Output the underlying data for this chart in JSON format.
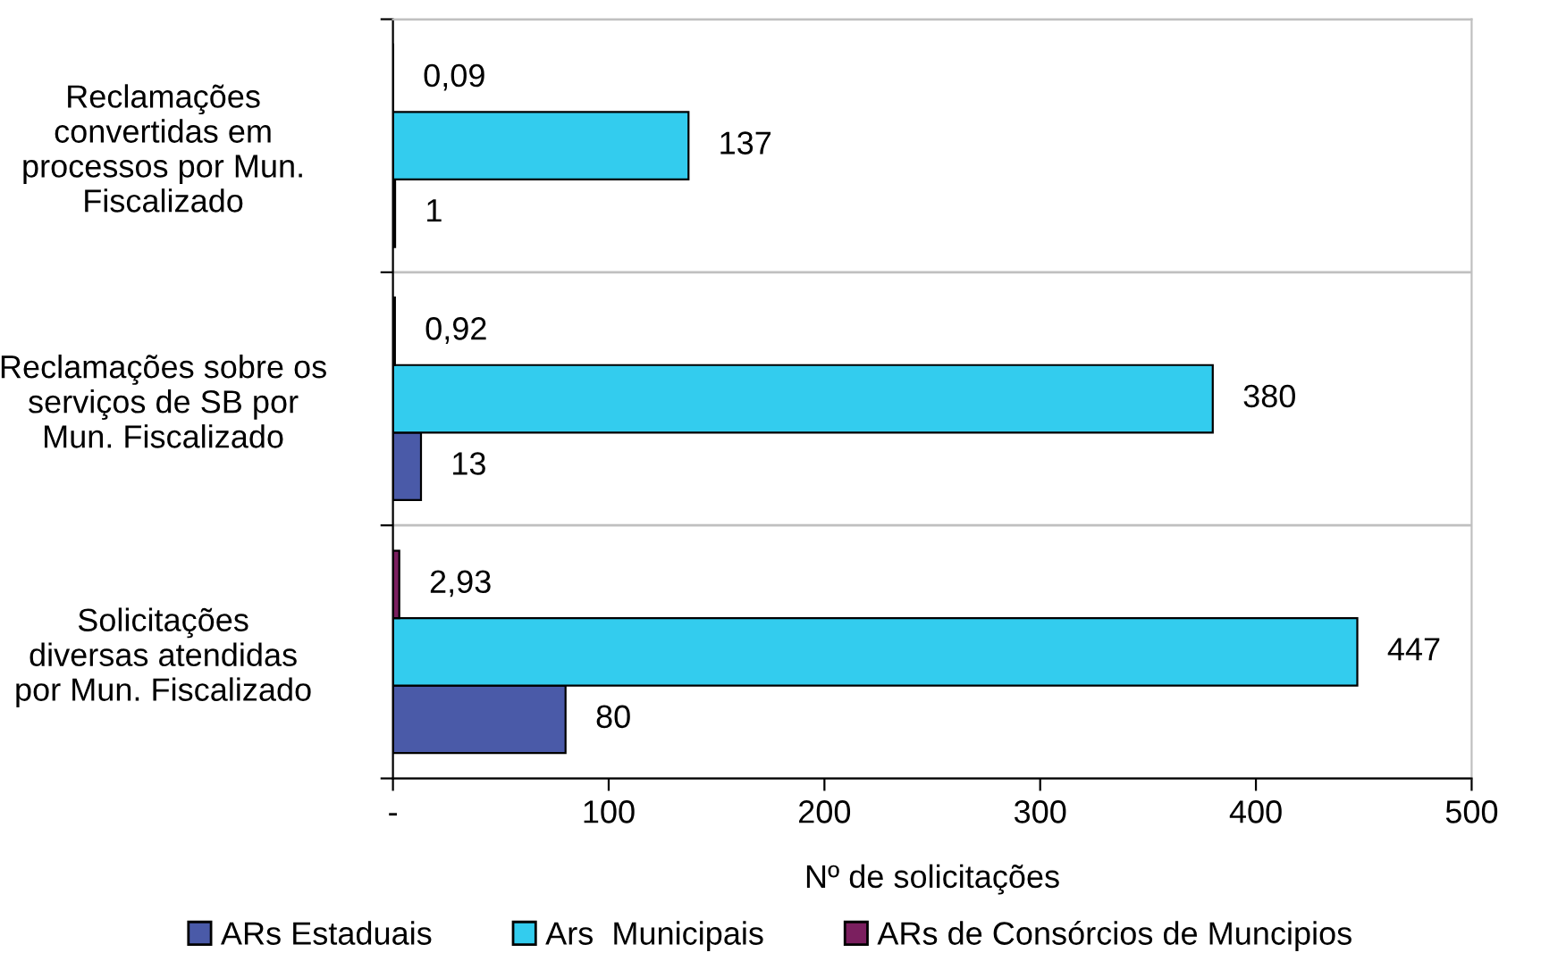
{
  "chart_data": {
    "type": "bar",
    "orientation": "horizontal",
    "xlabel": "Nº de solicitações",
    "categories": [
      "Reclamações convertidas em processos por Mun. Fiscalizado",
      "Reclamações sobre os serviços de SB por Mun. Fiscalizado",
      "Solicitações diversas atendidas por Mun. Fiscalizado"
    ],
    "series": [
      {
        "name": "ARs Estaduais",
        "color": "#4a5aa8",
        "values": [
          1,
          13,
          80
        ],
        "value_labels": [
          "1",
          "13",
          "80"
        ]
      },
      {
        "name": "Ars  Municipais",
        "color": "#33ccee",
        "values": [
          137,
          380,
          447
        ],
        "value_labels": [
          "137",
          "380",
          "447"
        ]
      },
      {
        "name": "ARs de Consórcios de Muncipios",
        "color": "#7b1f5f",
        "values": [
          0.09,
          0.92,
          2.93
        ],
        "value_labels": [
          "0,09",
          "0,92",
          "2,93"
        ]
      }
    ],
    "xlim": [
      0,
      500
    ],
    "xticks": [
      {
        "value": 0,
        "label": "-"
      },
      100,
      200,
      300,
      400,
      500
    ],
    "grid": "y",
    "legend": "bottom"
  }
}
